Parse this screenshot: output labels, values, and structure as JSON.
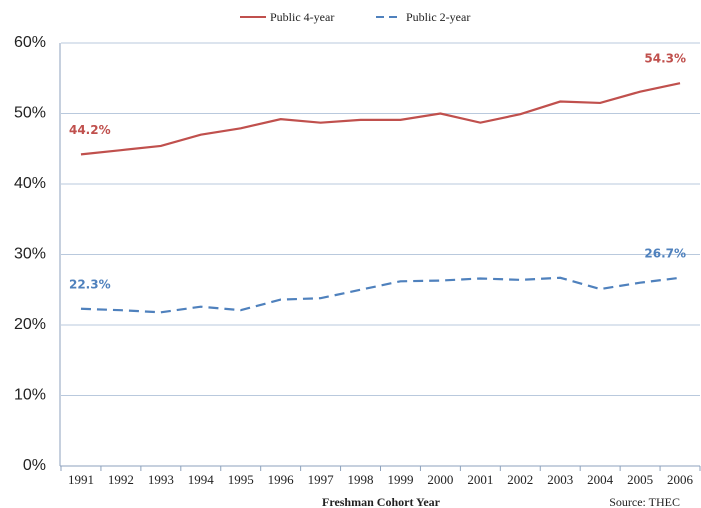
{
  "chart_data": {
    "type": "line",
    "categories": [
      "1991",
      "1992",
      "1993",
      "1994",
      "1995",
      "1996",
      "1997",
      "1998",
      "1999",
      "2000",
      "2001",
      "2002",
      "2003",
      "2004",
      "2005",
      "2006"
    ],
    "series": [
      {
        "name": "Public 4-year",
        "color": "#c0504d",
        "dash": false,
        "values": [
          44.2,
          44.8,
          45.4,
          47.0,
          47.9,
          49.2,
          48.7,
          49.1,
          49.1,
          50.0,
          48.7,
          49.9,
          51.7,
          51.5,
          53.1,
          54.3
        ],
        "value_labels": [
          "44.2%",
          null,
          null,
          null,
          null,
          null,
          null,
          null,
          null,
          null,
          null,
          null,
          null,
          null,
          null,
          "54.3%"
        ]
      },
      {
        "name": "Public 2-year",
        "color": "#4f81bd",
        "dash": true,
        "values": [
          22.3,
          22.1,
          21.8,
          22.6,
          22.1,
          23.6,
          23.8,
          25.0,
          26.2,
          26.3,
          26.6,
          26.4,
          26.7,
          25.1,
          26.0,
          26.7
        ],
        "value_labels": [
          "22.3%",
          null,
          null,
          null,
          null,
          null,
          null,
          null,
          null,
          null,
          null,
          null,
          null,
          null,
          null,
          "26.7%"
        ]
      }
    ],
    "ylim": [
      0,
      60
    ],
    "yticks": [
      {
        "value": 0,
        "label": "0%"
      },
      {
        "value": 10,
        "label": "10%"
      },
      {
        "value": 20,
        "label": "20%"
      },
      {
        "value": 30,
        "label": "30%"
      },
      {
        "value": 40,
        "label": "40%"
      },
      {
        "value": 50,
        "label": "50%"
      },
      {
        "value": 60,
        "label": "60%"
      }
    ],
    "grid": true,
    "legend": "top",
    "x_label": "Freshman Cohort Year",
    "source": "Source: THEC"
  }
}
